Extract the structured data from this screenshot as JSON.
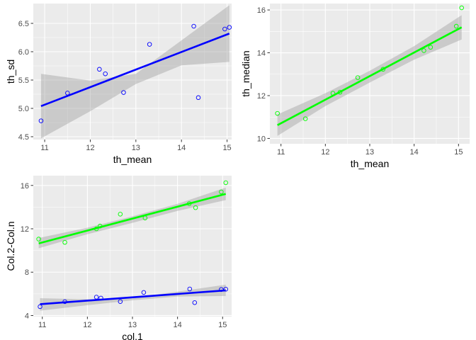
{
  "colors": {
    "panel_bg": "#ebebeb",
    "grid_major": "#ffffff",
    "ribbon": "#999999",
    "blue": "#0000ff",
    "green": "#00ff00",
    "tick_text": "#4d4d4d",
    "tick_mark": "#333333"
  },
  "chart_data": [
    {
      "type": "scatter",
      "xlabel": "th_mean",
      "ylabel": "th_sd",
      "xlim": [
        10.75,
        15.1
      ],
      "ylim": [
        4.45,
        6.85
      ],
      "x_ticks": [
        11,
        12,
        13,
        14,
        15
      ],
      "x_tick_labels": [
        "11",
        "12",
        "13",
        "14",
        "15"
      ],
      "y_ticks": [
        4.5,
        5.0,
        5.5,
        6.0,
        6.5
      ],
      "y_tick_labels": [
        "4.5",
        "5.0",
        "5.5",
        "6.0",
        "6.5"
      ],
      "grid": true,
      "series": [
        {
          "color": "blue",
          "points": [
            [
              10.92,
              4.78
            ],
            [
              11.5,
              5.27
            ],
            [
              12.2,
              5.69
            ],
            [
              12.33,
              5.61
            ],
            [
              12.73,
              5.28
            ],
            [
              13.3,
              6.13
            ],
            [
              14.27,
              6.45
            ],
            [
              14.37,
              5.19
            ],
            [
              14.95,
              6.4
            ],
            [
              15.05,
              6.43
            ]
          ],
          "fit": [
            [
              10.92,
              5.04
            ],
            [
              15.05,
              6.32
            ]
          ],
          "band": {
            "x": [
              10.92,
              12.0,
              13.0,
              14.0,
              15.05
            ],
            "lower": [
              4.47,
              4.95,
              5.43,
              5.76,
              5.82
            ],
            "upper": [
              5.61,
              5.49,
              5.61,
              6.2,
              6.82
            ]
          }
        }
      ]
    },
    {
      "type": "scatter",
      "xlabel": "th_mean",
      "ylabel": "th_median",
      "xlim": [
        10.75,
        15.25
      ],
      "ylim": [
        9.75,
        16.3
      ],
      "x_ticks": [
        11,
        12,
        13,
        14,
        15
      ],
      "x_tick_labels": [
        "11",
        "12",
        "13",
        "14",
        "15"
      ],
      "y_ticks": [
        10,
        12,
        14,
        16
      ],
      "y_tick_labels": [
        "10",
        "12",
        "14",
        "16"
      ],
      "grid": true,
      "series": [
        {
          "color": "green",
          "points": [
            [
              10.92,
              11.17
            ],
            [
              11.55,
              10.92
            ],
            [
              12.17,
              12.11
            ],
            [
              12.33,
              12.16
            ],
            [
              12.73,
              12.84
            ],
            [
              13.3,
              13.23
            ],
            [
              14.22,
              14.1
            ],
            [
              14.37,
              14.26
            ],
            [
              14.95,
              15.24
            ],
            [
              15.07,
              16.1
            ]
          ],
          "fit": [
            [
              10.92,
              10.62
            ],
            [
              15.07,
              15.19
            ]
          ],
          "band": {
            "x": [
              10.92,
              12.0,
              13.0,
              14.0,
              15.07
            ],
            "lower": [
              10.12,
              11.51,
              12.61,
              13.68,
              14.62
            ],
            "upper": [
              11.12,
              12.11,
              13.16,
              14.31,
              15.76
            ]
          }
        }
      ]
    },
    {
      "type": "scatter",
      "xlabel": "col.1",
      "ylabel": "Col.2-Col.n",
      "xlim": [
        10.8,
        15.2
      ],
      "ylim": [
        3.9,
        16.9
      ],
      "x_ticks": [
        11,
        12,
        13,
        14,
        15
      ],
      "x_tick_labels": [
        "11",
        "12",
        "13",
        "14",
        "15"
      ],
      "y_ticks": [
        4,
        8,
        12,
        16
      ],
      "y_tick_labels": [
        "4",
        "8",
        "12",
        "16"
      ],
      "grid": true,
      "series": [
        {
          "color": "green",
          "points": [
            [
              10.92,
              11.05
            ],
            [
              11.5,
              10.75
            ],
            [
              12.2,
              12.0
            ],
            [
              12.28,
              12.25
            ],
            [
              12.73,
              13.35
            ],
            [
              13.28,
              13.0
            ],
            [
              14.26,
              14.32
            ],
            [
              14.4,
              13.95
            ],
            [
              14.97,
              15.4
            ],
            [
              15.07,
              16.25
            ]
          ],
          "fit": [
            [
              10.92,
              10.65
            ],
            [
              15.07,
              15.22
            ]
          ],
          "band": {
            "x": [
              10.92,
              12.0,
              13.0,
              14.0,
              15.07
            ],
            "lower": [
              10.2,
              11.5,
              12.55,
              13.65,
              14.65
            ],
            "upper": [
              11.15,
              12.1,
              13.15,
              14.3,
              15.8
            ]
          }
        },
        {
          "color": "blue",
          "points": [
            [
              10.95,
              4.82
            ],
            [
              11.5,
              5.28
            ],
            [
              12.2,
              5.7
            ],
            [
              12.3,
              5.61
            ],
            [
              12.73,
              5.29
            ],
            [
              13.25,
              6.13
            ],
            [
              14.27,
              6.45
            ],
            [
              14.38,
              5.19
            ],
            [
              14.97,
              6.4
            ],
            [
              15.07,
              6.43
            ]
          ],
          "fit": [
            [
              10.95,
              5.05
            ],
            [
              15.07,
              6.32
            ]
          ],
          "band": {
            "x": [
              10.95,
              12.0,
              13.0,
              14.0,
              15.07
            ],
            "lower": [
              4.45,
              4.95,
              5.4,
              5.75,
              5.8
            ],
            "upper": [
              5.6,
              5.5,
              5.65,
              6.2,
              6.85
            ]
          }
        }
      ]
    }
  ]
}
